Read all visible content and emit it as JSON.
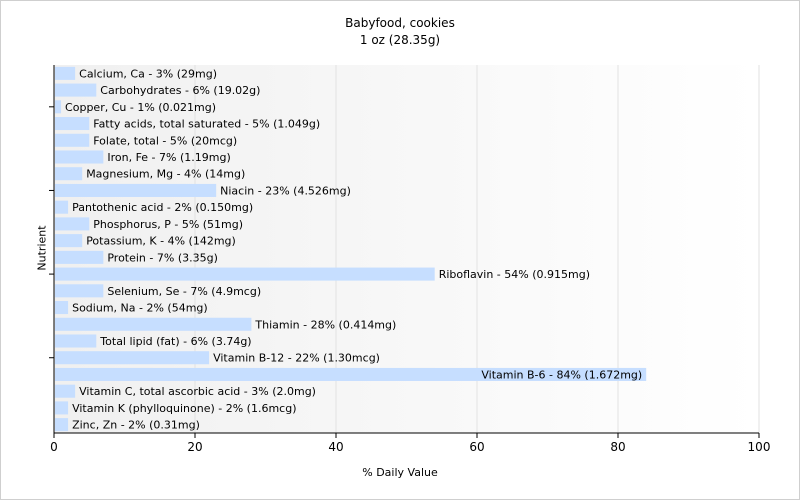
{
  "chart_data": {
    "type": "bar",
    "orientation": "horizontal",
    "title": "Babyfood, cookies",
    "subtitle": "1 oz (28.35g)",
    "xlabel": "% Daily Value",
    "ylabel": "Nutrient",
    "xlim": [
      0,
      100
    ],
    "xticks": [
      0,
      20,
      40,
      60,
      80,
      100
    ],
    "grid": true,
    "bar_color": "#c6deff",
    "categories": [
      "Calcium, Ca - 3% (29mg)",
      "Carbohydrates - 6% (19.02g)",
      "Copper, Cu - 1% (0.021mg)",
      "Fatty acids, total saturated - 5% (1.049g)",
      "Folate, total - 5% (20mcg)",
      "Iron, Fe - 7% (1.19mg)",
      "Magnesium, Mg - 4% (14mg)",
      "Niacin - 23% (4.526mg)",
      "Pantothenic acid - 2% (0.150mg)",
      "Phosphorus, P - 5% (51mg)",
      "Potassium, K - 4% (142mg)",
      "Protein - 7% (3.35g)",
      "Riboflavin - 54% (0.915mg)",
      "Selenium, Se - 7% (4.9mcg)",
      "Sodium, Na - 2% (54mg)",
      "Thiamin - 28% (0.414mg)",
      "Total lipid (fat) - 6% (3.74g)",
      "Vitamin B-12 - 22% (1.30mcg)",
      "Vitamin B-6 - 84% (1.672mg)",
      "Vitamin C, total ascorbic acid - 3% (2.0mg)",
      "Vitamin K (phylloquinone) - 2% (1.6mcg)",
      "Zinc, Zn - 2% (0.31mg)"
    ],
    "values": [
      3,
      6,
      1,
      5,
      5,
      7,
      4,
      23,
      2,
      5,
      4,
      7,
      54,
      7,
      2,
      28,
      6,
      22,
      84,
      3,
      2,
      2
    ]
  }
}
